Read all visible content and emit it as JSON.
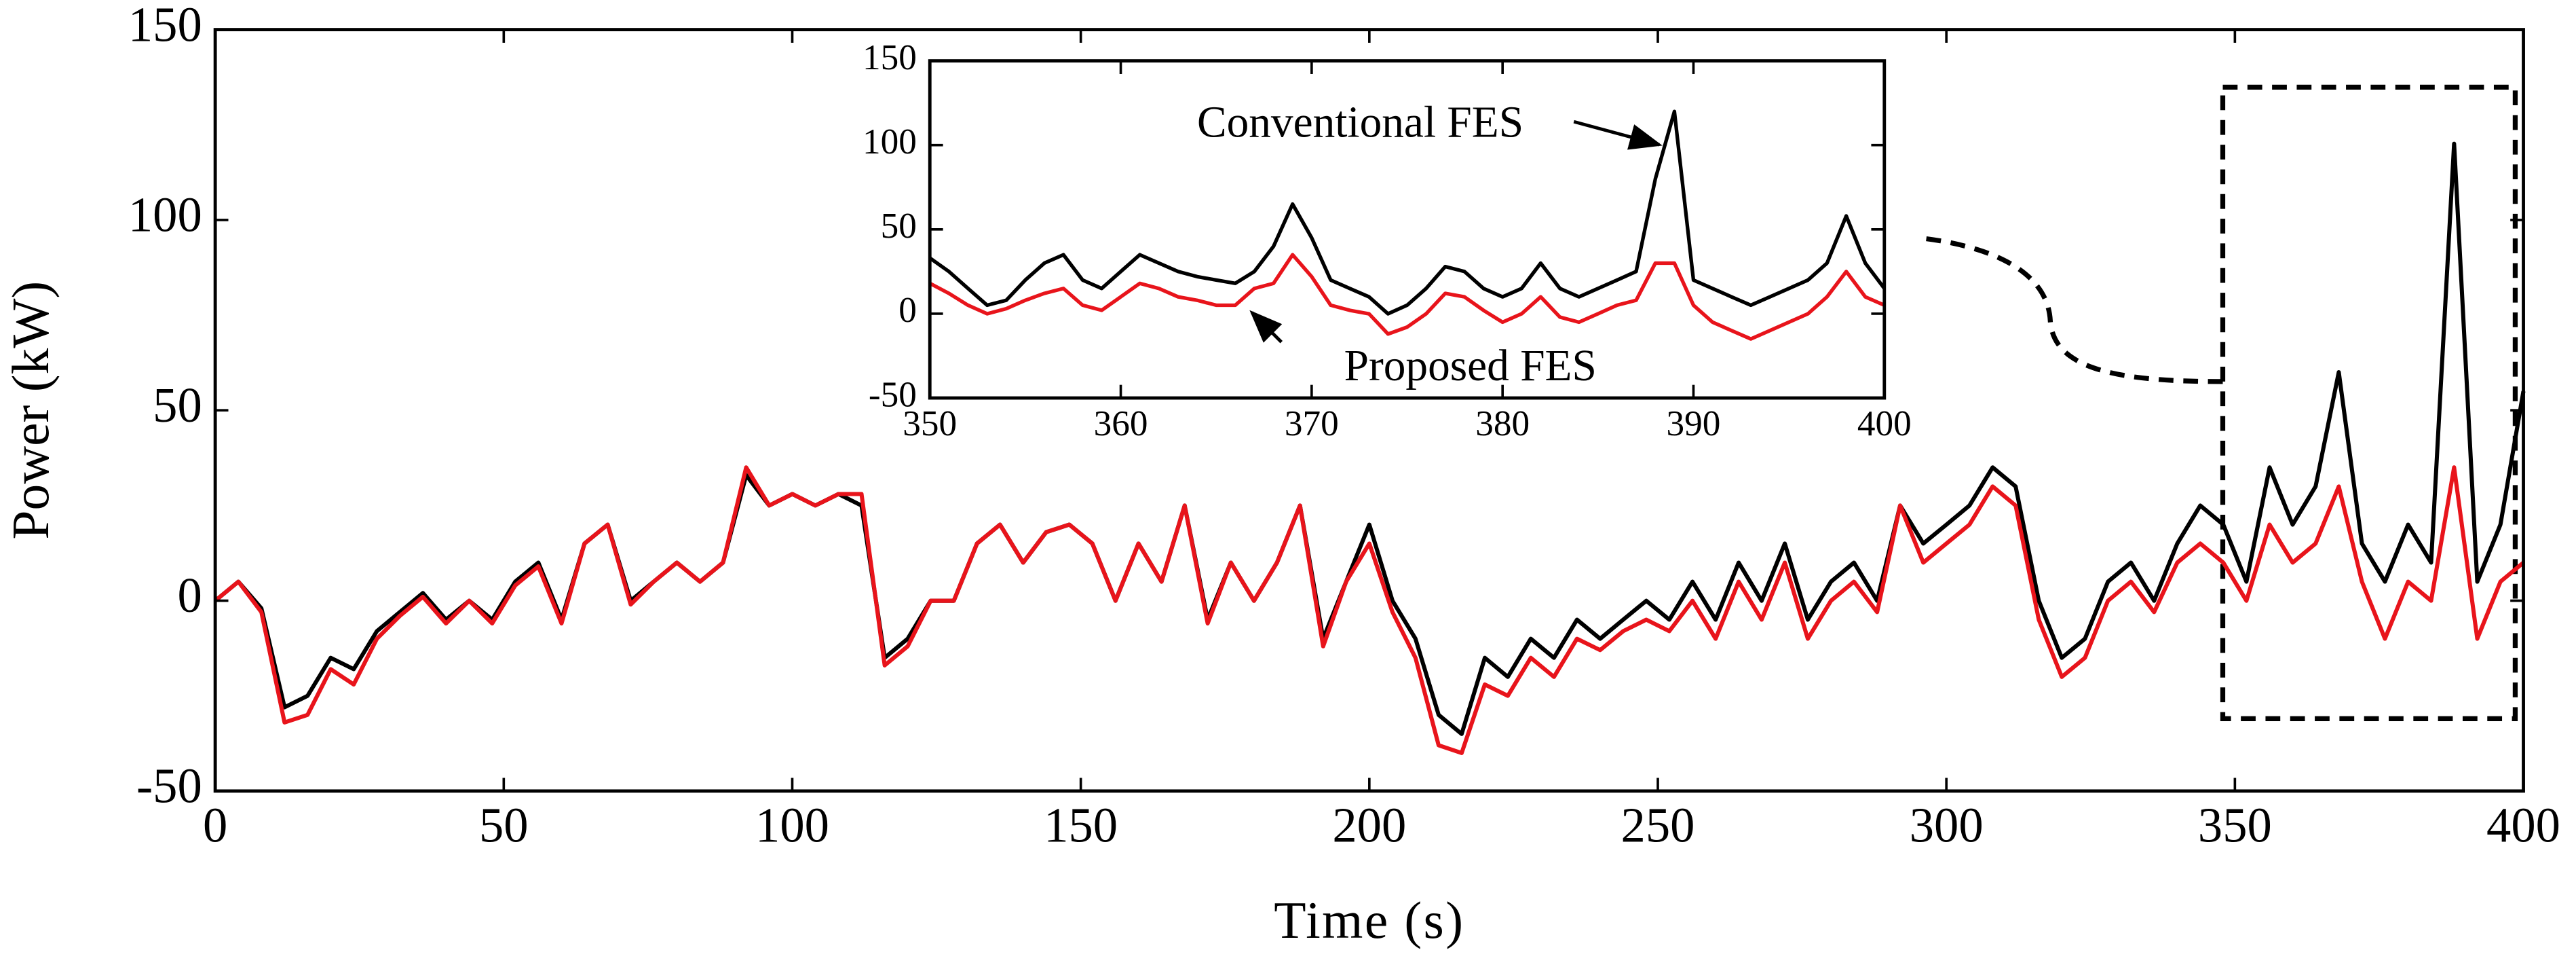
{
  "chart_data": [
    {
      "type": "line",
      "xlabel": "Time (s)",
      "ylabel": "Power (kW)",
      "x": [
        0,
        4,
        8,
        12,
        16,
        20,
        24,
        28,
        32,
        36,
        40,
        44,
        48,
        52,
        56,
        60,
        64,
        68,
        72,
        76,
        80,
        84,
        88,
        92,
        96,
        100,
        104,
        108,
        112,
        116,
        120,
        124,
        128,
        132,
        136,
        140,
        144,
        148,
        152,
        156,
        160,
        164,
        168,
        172,
        176,
        180,
        184,
        188,
        192,
        196,
        200,
        204,
        208,
        212,
        216,
        220,
        224,
        228,
        232,
        236,
        240,
        244,
        248,
        252,
        256,
        260,
        264,
        268,
        272,
        276,
        280,
        284,
        288,
        292,
        296,
        300,
        304,
        308,
        312,
        316,
        320,
        324,
        328,
        332,
        336,
        340,
        344,
        348,
        352,
        356,
        360,
        364,
        368,
        372,
        376,
        380,
        384,
        388,
        392,
        396,
        400
      ],
      "series": [
        {
          "name": "Conventional FES",
          "color": "#000000",
          "values": [
            0,
            5,
            -2,
            -28,
            -25,
            -15,
            -18,
            -8,
            -3,
            2,
            -5,
            0,
            -5,
            5,
            10,
            -5,
            15,
            20,
            0,
            5,
            10,
            5,
            10,
            33,
            25,
            28,
            25,
            28,
            25,
            -15,
            -10,
            0,
            0,
            15,
            20,
            10,
            18,
            20,
            15,
            0,
            15,
            5,
            25,
            -5,
            10,
            0,
            10,
            25,
            -10,
            5,
            20,
            0,
            -10,
            -30,
            -35,
            -15,
            -20,
            -10,
            -15,
            -5,
            -10,
            -5,
            0,
            -5,
            5,
            -5,
            10,
            0,
            15,
            -5,
            5,
            10,
            0,
            25,
            15,
            20,
            25,
            35,
            30,
            0,
            -15,
            -10,
            5,
            10,
            0,
            15,
            25,
            20,
            5,
            35,
            20,
            30,
            60,
            15,
            5,
            20,
            10,
            120,
            5,
            20,
            55
          ]
        },
        {
          "name": "Proposed FES",
          "color": "#e8141b",
          "values": [
            0,
            5,
            -3,
            -32,
            -30,
            -18,
            -22,
            -10,
            -4,
            1,
            -6,
            0,
            -6,
            4,
            9,
            -6,
            15,
            20,
            -1,
            5,
            10,
            5,
            10,
            35,
            25,
            28,
            25,
            28,
            28,
            -17,
            -12,
            0,
            0,
            15,
            20,
            10,
            18,
            20,
            15,
            0,
            15,
            5,
            25,
            -6,
            10,
            0,
            10,
            25,
            -12,
            5,
            15,
            -3,
            -15,
            -38,
            -40,
            -22,
            -25,
            -15,
            -20,
            -10,
            -13,
            -8,
            -5,
            -8,
            0,
            -10,
            5,
            -5,
            10,
            -10,
            0,
            5,
            -3,
            25,
            10,
            15,
            20,
            30,
            25,
            -5,
            -20,
            -15,
            0,
            5,
            -3,
            10,
            15,
            10,
            0,
            20,
            10,
            15,
            30,
            5,
            -10,
            5,
            0,
            35,
            -10,
            5,
            10
          ]
        }
      ],
      "xlim": [
        0,
        400
      ],
      "xticks": [
        0,
        50,
        100,
        150,
        200,
        250,
        300,
        350,
        400
      ],
      "ylim": [
        -50,
        150
      ],
      "yticks": [
        -50,
        0,
        50,
        100,
        150
      ]
    },
    {
      "type": "line",
      "annotations": [
        "Conventional FES",
        "Proposed FES"
      ],
      "x": [
        350,
        351,
        352,
        353,
        354,
        355,
        356,
        357,
        358,
        359,
        360,
        361,
        362,
        363,
        364,
        365,
        366,
        367,
        368,
        369,
        370,
        371,
        372,
        373,
        374,
        375,
        376,
        377,
        378,
        379,
        380,
        381,
        382,
        383,
        384,
        385,
        386,
        387,
        388,
        389,
        390,
        391,
        392,
        393,
        394,
        395,
        396,
        397,
        398,
        399,
        400
      ],
      "series": [
        {
          "color": "#000000",
          "values": [
            33,
            25,
            15,
            5,
            8,
            20,
            30,
            35,
            20,
            15,
            25,
            35,
            30,
            25,
            22,
            20,
            18,
            25,
            40,
            65,
            45,
            20,
            15,
            10,
            0,
            5,
            15,
            28,
            25,
            15,
            10,
            15,
            30,
            15,
            10,
            15,
            20,
            25,
            80,
            120,
            20,
            15,
            10,
            5,
            10,
            15,
            20,
            30,
            58,
            30,
            15
          ]
        },
        {
          "color": "#e8141b",
          "values": [
            18,
            12,
            5,
            0,
            3,
            8,
            12,
            15,
            5,
            2,
            10,
            18,
            15,
            10,
            8,
            5,
            5,
            15,
            18,
            35,
            22,
            5,
            2,
            0,
            -12,
            -8,
            0,
            12,
            10,
            2,
            -5,
            0,
            10,
            -2,
            -5,
            0,
            5,
            8,
            30,
            30,
            5,
            -5,
            -10,
            -15,
            -10,
            -5,
            0,
            10,
            25,
            10,
            5
          ]
        }
      ],
      "xlim": [
        350,
        400
      ],
      "xticks": [
        350,
        360,
        370,
        380,
        390,
        400
      ],
      "ylim": [
        -50,
        150
      ],
      "yticks": [
        -50,
        0,
        50,
        100,
        150
      ]
    }
  ]
}
